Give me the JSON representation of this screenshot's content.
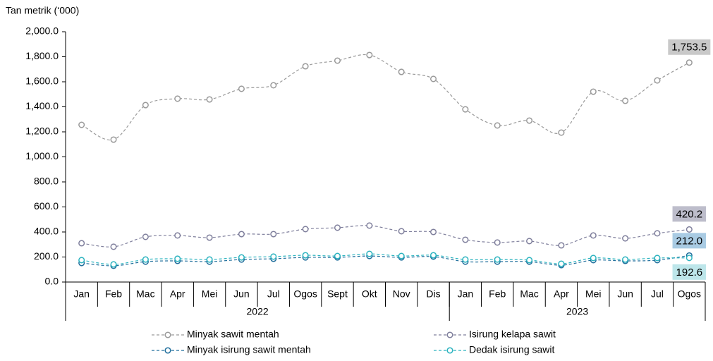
{
  "chart_data": {
    "type": "line",
    "y_axis_label": "Tan metrik (‘000)",
    "categories": [
      "Jan",
      "Feb",
      "Mac",
      "Apr",
      "Mei",
      "Jun",
      "Jul",
      "Ogos",
      "Sept",
      "Okt",
      "Nov",
      "Dis",
      "Jan",
      "Feb",
      "Mac",
      "Apr",
      "Mei",
      "Jun",
      "Jul",
      "Ogos"
    ],
    "x_groups": [
      {
        "label": "2022",
        "count": 12
      },
      {
        "label": "2023",
        "count": 8
      }
    ],
    "ylim": [
      0,
      2000
    ],
    "yticks": [
      {
        "value": 0,
        "label": "0.0"
      },
      {
        "value": 200,
        "label": "200.0"
      },
      {
        "value": 400,
        "label": "400.0"
      },
      {
        "value": 600,
        "label": "600.0"
      },
      {
        "value": 800,
        "label": "800.0"
      },
      {
        "value": 1000,
        "label": "1,000.0"
      },
      {
        "value": 1200,
        "label": "1,200.0"
      },
      {
        "value": 1400,
        "label": "1,400.0"
      },
      {
        "value": 1600,
        "label": "1,600.0"
      },
      {
        "value": 1800,
        "label": "1,800.0"
      },
      {
        "value": 2000,
        "label": "2,000.0"
      }
    ],
    "grid": false,
    "legend": "bottom",
    "series": [
      {
        "name": "Minyak sawit mentah",
        "color": "#9a9a9a",
        "label_color": "#c9c9c9",
        "values": [
          1256,
          1138,
          1414,
          1465,
          1459,
          1544,
          1572,
          1724,
          1769,
          1814,
          1679,
          1623,
          1380,
          1251,
          1290,
          1194,
          1521,
          1448,
          1611,
          1753.5
        ],
        "value_labels": [
          null,
          null,
          null,
          null,
          null,
          null,
          null,
          null,
          null,
          null,
          null,
          null,
          null,
          null,
          null,
          null,
          null,
          null,
          null,
          "1,753.5"
        ]
      },
      {
        "name": "Isirung kelapa sawit",
        "color": "#7f7f9c",
        "label_color": "#bdbdcb",
        "values": [
          310,
          282,
          361,
          372,
          355,
          383,
          383,
          423,
          434,
          451,
          406,
          400,
          338,
          316,
          327,
          293,
          372,
          349,
          389,
          420.2
        ],
        "value_labels": [
          null,
          null,
          null,
          null,
          null,
          null,
          null,
          null,
          null,
          null,
          null,
          null,
          null,
          null,
          null,
          null,
          null,
          null,
          null,
          "420.2"
        ]
      },
      {
        "name": "Minyak isirung sawit mentah",
        "color": "#1f6e9c",
        "label_color": "#a9cbe3",
        "values": [
          152,
          130,
          163,
          169,
          163,
          180,
          186,
          197,
          197,
          208,
          197,
          203,
          163,
          163,
          163,
          135,
          175,
          169,
          175,
          212.0
        ],
        "value_labels": [
          null,
          null,
          null,
          null,
          null,
          null,
          null,
          null,
          null,
          null,
          null,
          null,
          null,
          null,
          null,
          null,
          null,
          null,
          null,
          "212.0"
        ]
      },
      {
        "name": "Dedak isirung sawit",
        "color": "#2bb3bf",
        "label_color": "#bde6ea",
        "values": [
          175,
          141,
          180,
          186,
          180,
          197,
          203,
          214,
          208,
          225,
          208,
          214,
          180,
          180,
          175,
          146,
          192,
          180,
          192,
          192.6
        ],
        "value_labels": [
          null,
          null,
          null,
          null,
          null,
          null,
          null,
          null,
          null,
          null,
          null,
          null,
          null,
          null,
          null,
          null,
          null,
          null,
          null,
          "192.6"
        ]
      }
    ]
  }
}
